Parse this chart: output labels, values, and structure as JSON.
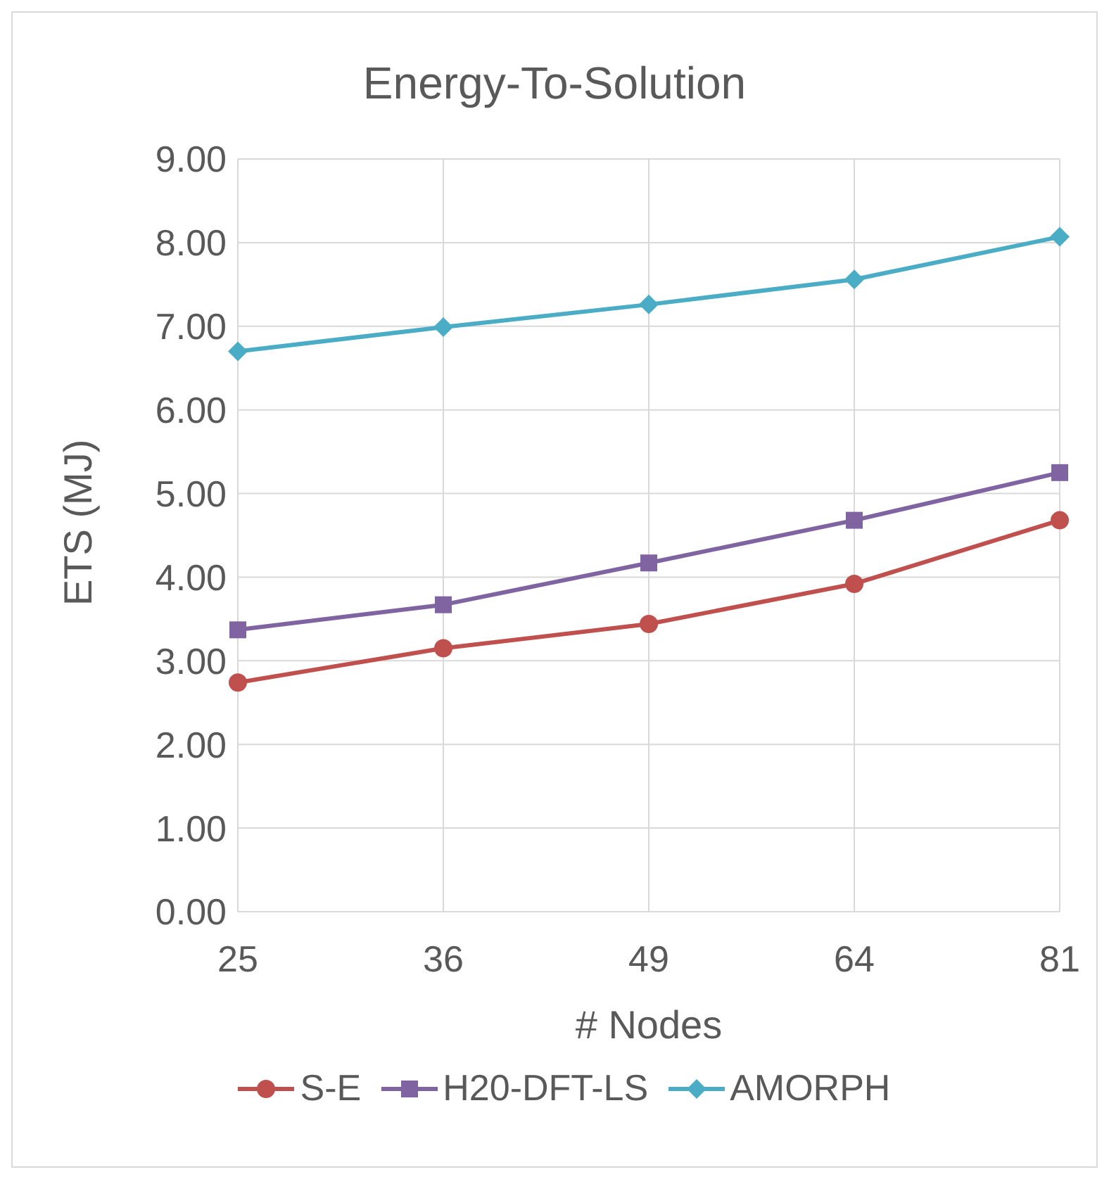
{
  "chart_data": {
    "type": "line",
    "title": "Energy-To-Solution",
    "xlabel": "# Nodes",
    "ylabel": "ETS (MJ)",
    "categories": [
      "25",
      "36",
      "49",
      "64",
      "81"
    ],
    "series": [
      {
        "name": "S-E",
        "color": "#c0504d",
        "marker": "circle",
        "values": [
          2.74,
          3.15,
          3.44,
          3.92,
          4.68
        ]
      },
      {
        "name": "H20-DFT-LS",
        "color": "#8064a2",
        "marker": "square",
        "values": [
          3.37,
          3.67,
          4.17,
          4.68,
          5.25
        ]
      },
      {
        "name": "AMORPH",
        "color": "#4bacc6",
        "marker": "diamond",
        "values": [
          6.7,
          6.99,
          7.26,
          7.56,
          8.07
        ]
      }
    ],
    "ylim": [
      0,
      9
    ],
    "yticks": [
      {
        "value": 0,
        "label": "0.00"
      },
      {
        "value": 1,
        "label": "1.00"
      },
      {
        "value": 2,
        "label": "2.00"
      },
      {
        "value": 3,
        "label": "3.00"
      },
      {
        "value": 4,
        "label": "4.00"
      },
      {
        "value": 5,
        "label": "5.00"
      },
      {
        "value": 6,
        "label": "6.00"
      },
      {
        "value": 7,
        "label": "7.00"
      },
      {
        "value": 8,
        "label": "8.00"
      },
      {
        "value": 9,
        "label": "9.00"
      }
    ],
    "grid": true,
    "legend": "bottom",
    "line_style": "solid"
  }
}
